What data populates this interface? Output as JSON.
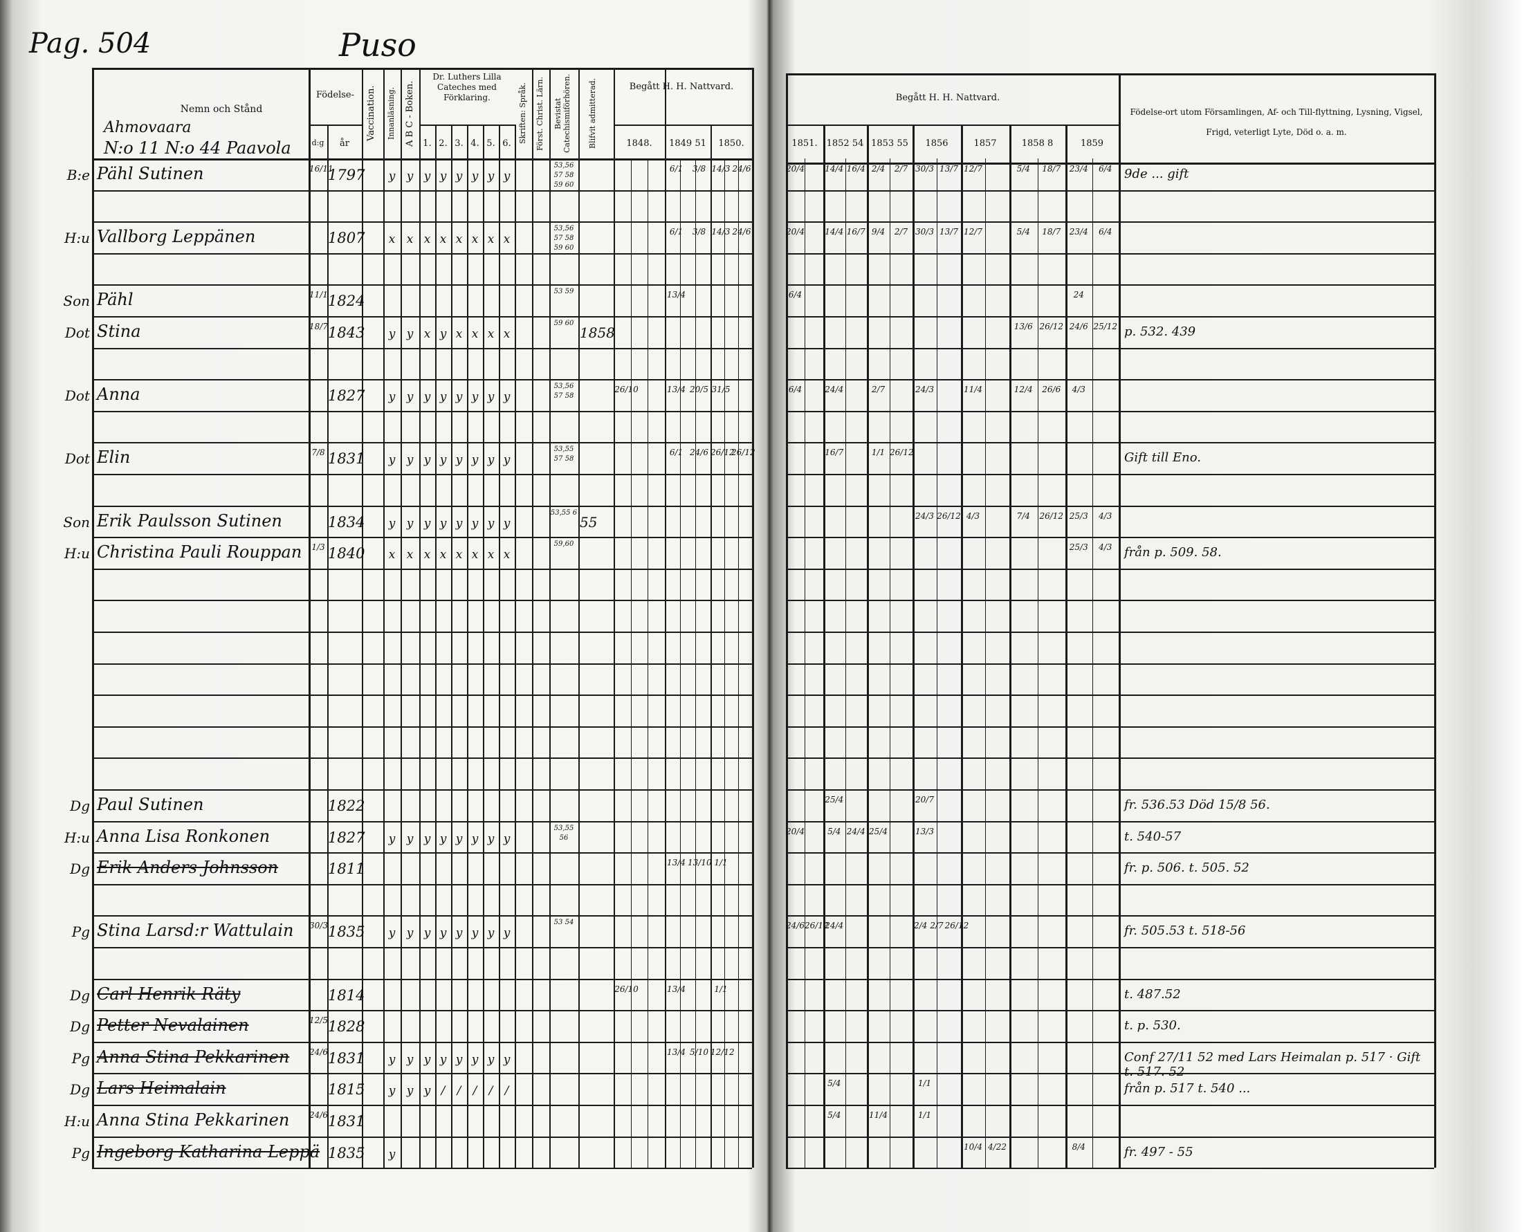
{
  "page_label": "Pag. 504",
  "village": "Puso",
  "left_header": {
    "name_col": "Nemn och Stånd",
    "homestead": "Ahmovaara",
    "house_no": "N:o 11  N:o 44 Paavola",
    "birth": "Födelse-",
    "birth_day": "d:g",
    "birth_year": "år",
    "vaccination": "Vaccination.",
    "reading": "Innanläsning.",
    "abc": "A B C - Boken.",
    "luther": "Dr. Luthers Lilla Cateches med Förklaring.",
    "luther_cols": [
      "1.",
      "2.",
      "3.",
      "4.",
      "5.",
      "6."
    ],
    "skriften": "Skriften: Språk.",
    "forst": "Först. Christ. Lärn.",
    "bevistat": "Bevistat Catechismiförhören.",
    "admitted": "Blifvit admitterad.",
    "communion": "Begått H. H. Nattvard.",
    "years": [
      "1848.",
      "1849 51",
      "1850."
    ]
  },
  "right_header": {
    "communion": "Begått H. H. Nattvard.",
    "years": [
      "1851.",
      "1852 54",
      "1853 55",
      "1856",
      "1857",
      "1858 8",
      "1859"
    ],
    "remarks": "Födelse-ort utom Församlingen, Af- och Till-flyttning, Lysning, Vigsel, Frigd, veterligt Lyte, Död o. a. m."
  },
  "year_keys": [
    "1848",
    "1849",
    "1850",
    "1851",
    "1852",
    "1853",
    "1856",
    "1857",
    "1858",
    "1859"
  ],
  "rows": [
    {
      "row": 0,
      "prefix": "B:e",
      "name": "Pähl Sutinen",
      "day": "16/11",
      "year": "1797",
      "marks": [
        "y",
        "y",
        "y",
        "y",
        "y",
        "y",
        "y",
        "y"
      ],
      "bevistat": "53,56 57 58 59 60",
      "communion": {
        "1849": [
          "6/1",
          "3/8"
        ],
        "1850": [
          "14/3",
          "24/6"
        ],
        "1851": [
          "20/4"
        ],
        "1852": [
          "14/4",
          "16/4"
        ],
        "1853": [
          "2/4",
          "2/7"
        ],
        "1856": [
          "30/3",
          "13/7"
        ],
        "1857": [
          "12/7"
        ],
        "1858": [
          "5/4",
          "18/7"
        ],
        "1859": [
          "23/4",
          "6/4"
        ]
      },
      "remark": "9de ... gift"
    },
    {
      "row": 2,
      "prefix": "H:u",
      "name": "Vallborg Leppänen",
      "year": "1807",
      "marks": [
        "x",
        "x",
        "x",
        "x",
        "x",
        "x",
        "x",
        "x"
      ],
      "bevistat": "53,56 57 58 59 60",
      "communion": {
        "1849": [
          "6/1",
          "3/8"
        ],
        "1850": [
          "14/3",
          "24/6"
        ],
        "1851": [
          "20/4"
        ],
        "1852": [
          "14/4",
          "16/7"
        ],
        "1853": [
          "9/4",
          "2/7"
        ],
        "1856": [
          "30/3",
          "13/7"
        ],
        "1857": [
          "12/7"
        ],
        "1858": [
          "5/4",
          "18/7"
        ],
        "1859": [
          "23/4",
          "6/4"
        ]
      }
    },
    {
      "row": 4,
      "prefix": "Son",
      "name": "Pähl",
      "day": "11/1",
      "year": "1824",
      "bevistat": "53 59",
      "communion": {
        "1849": [
          "13/4"
        ],
        "1851": [
          "6/4"
        ],
        "1859": [
          "24"
        ]
      }
    },
    {
      "row": 5,
      "prefix": "Dot",
      "name": "Stina",
      "day": "18/7",
      "year": "1843",
      "marks": [
        "y",
        "y",
        "x",
        "y",
        "x",
        "x",
        "x",
        "x"
      ],
      "bevistat": "59 60",
      "admitted": "1858",
      "communion": {
        "1858": [
          "13/6",
          "26/12"
        ],
        "1859": [
          "24/6",
          "25/12"
        ]
      },
      "remark": "p. 532. 439"
    },
    {
      "row": 7,
      "prefix": "Dot",
      "name": "Anna",
      "year": "1827",
      "marks": [
        "y",
        "y",
        "y",
        "y",
        "y",
        "y",
        "y",
        "y"
      ],
      "bevistat": "53,56 57 58",
      "communion": {
        "1848": [
          "26/10"
        ],
        "1849": [
          "13/4",
          "20/5"
        ],
        "1850": [
          "31/5"
        ],
        "1851": [
          "6/4"
        ],
        "1852": [
          "24/4"
        ],
        "1853": [
          "2/7"
        ],
        "1856": [
          "24/3"
        ],
        "1857": [
          "11/4"
        ],
        "1858": [
          "12/4",
          "26/6"
        ],
        "1859": [
          "4/3"
        ]
      }
    },
    {
      "row": 9,
      "prefix": "Dot",
      "name": "Elin",
      "day": "7/8",
      "year": "1831",
      "marks": [
        "y",
        "y",
        "y",
        "y",
        "y",
        "y",
        "y",
        "y"
      ],
      "bevistat": "53,55 57 58",
      "communion": {
        "1849": [
          "6/1",
          "24/6"
        ],
        "1850": [
          "26/12",
          "26/12"
        ],
        "1852": [
          "16/7"
        ],
        "1853": [
          "1/1",
          "26/12"
        ]
      },
      "remark": "Gift till Eno."
    },
    {
      "row": 11,
      "prefix": "Son",
      "name": "Erik Paulsson Sutinen",
      "year": "1834",
      "marks": [
        "y",
        "y",
        "y",
        "y",
        "y",
        "y",
        "y",
        "y"
      ],
      "bevistat": "53,55 6",
      "admitted": "55",
      "communion": {
        "1856": [
          "24/3",
          "26/12"
        ],
        "1857": [
          "4/3"
        ],
        "1858": [
          "7/4",
          "26/12"
        ],
        "1859": [
          "25/3",
          "4/3"
        ]
      }
    },
    {
      "row": 12,
      "prefix": "H:u",
      "name": "Christina Pauli Rouppan",
      "day": "1/3",
      "year": "1840",
      "marks": [
        "x",
        "x",
        "x",
        "x",
        "x",
        "x",
        "x",
        "x"
      ],
      "bevistat": "59,60",
      "communion": {
        "1859": [
          "25/3",
          "4/3"
        ]
      },
      "remark": "från p. 509. 58."
    },
    {
      "row": 20,
      "prefix": "Dg",
      "name": "Paul Sutinen",
      "year": "1822",
      "communion": {
        "1852": [
          "25/4"
        ],
        "1856": [
          "20/7"
        ]
      },
      "remark": "fr. 536.53   Död 15/8 56."
    },
    {
      "row": 21,
      "prefix": "H:u",
      "name": "Anna Lisa Ronkonen",
      "year": "1827",
      "marks": [
        "y",
        "y",
        "y",
        "y",
        "y",
        "y",
        "y",
        "y"
      ],
      "bevistat": "53,55 56",
      "communion": {
        "1851": [
          "20/4"
        ],
        "1852": [
          "5/4",
          "24/4"
        ],
        "1853": [
          "25/4"
        ],
        "1856": [
          "13/3"
        ]
      },
      "remark": "t. 540-57"
    },
    {
      "row": 22,
      "prefix": "Dg",
      "name": "Erik Anders Johnsson",
      "year": "1811",
      "struck": true,
      "communion": {
        "1849": [
          "13/4",
          "13/10"
        ],
        "1850": [
          "1/1"
        ]
      },
      "remark": "fr. p. 506. t. 505. 52"
    },
    {
      "row": 24,
      "prefix": "Pg",
      "name": "Stina Larsd:r Wattulain",
      "day": "30/3",
      "year": "1835",
      "marks": [
        "y",
        "y",
        "y",
        "y",
        "y",
        "y",
        "y",
        "y"
      ],
      "bevistat": "53 54",
      "communion": {
        "1851": [
          "24/6",
          "26/12"
        ],
        "1852": [
          "24/4"
        ],
        "1856": [
          "2/4",
          "2/7",
          "26/12"
        ]
      },
      "remark": "fr. 505.53 t. 518-56"
    },
    {
      "row": 26,
      "prefix": "Dg",
      "name": "Carl Henrik Räty",
      "year": "1814",
      "struck": true,
      "communion": {
        "1848": [
          "26/10"
        ],
        "1849": [
          "13/4"
        ],
        "1850": [
          "1/1"
        ]
      },
      "remark": "t. 487.52"
    },
    {
      "row": 27,
      "prefix": "Dg",
      "name": "Petter Nevalainen",
      "day": "12/5",
      "year": "1828",
      "struck": true,
      "remark": "t. p. 530."
    },
    {
      "row": 28,
      "prefix": "Pg",
      "name": "Anna Stina Pekkarinen",
      "day": "24/6",
      "year": "1831",
      "marks": [
        "y",
        "y",
        "y",
        "y",
        "y",
        "y",
        "y",
        "y"
      ],
      "struck": true,
      "communion": {
        "1849": [
          "13/4",
          "5/10"
        ],
        "1850": [
          "12/12"
        ]
      },
      "remark": "Conf 27/11 52 med Lars Heimalan p. 517 · Gift t. 517. 52"
    },
    {
      "row": 29,
      "prefix": "Dg",
      "name": "Lars Heimalain",
      "year": "1815",
      "marks": [
        "y",
        "y",
        "y",
        "/",
        "/",
        "/",
        "/",
        "/"
      ],
      "struck": true,
      "communion": {
        "1852": [
          "5/4"
        ],
        "1856": [
          "1/1"
        ]
      },
      "remark": "från p. 517  t. 540 ..."
    },
    {
      "row": 30,
      "prefix": "H:u",
      "name": "Anna Stina Pekkarinen",
      "day": "24/6",
      "year": "1831",
      "communion": {
        "1852": [
          "5/4"
        ],
        "1853": [
          "11/4"
        ],
        "1856": [
          "1/1"
        ]
      }
    },
    {
      "row": 31,
      "prefix": "Pg",
      "name": "Ingeborg Katharina Leppä",
      "year": "1835",
      "struck": true,
      "marks": [
        "y"
      ],
      "communion": {
        "1857": [
          "10/4",
          "4/22"
        ],
        "1859": [
          "8/4"
        ]
      },
      "remark": "fr. 497 - 55"
    }
  ],
  "colors": {
    "paper": "#f4f4f1",
    "ink": "#111111",
    "shadow": "#3a3a38"
  }
}
